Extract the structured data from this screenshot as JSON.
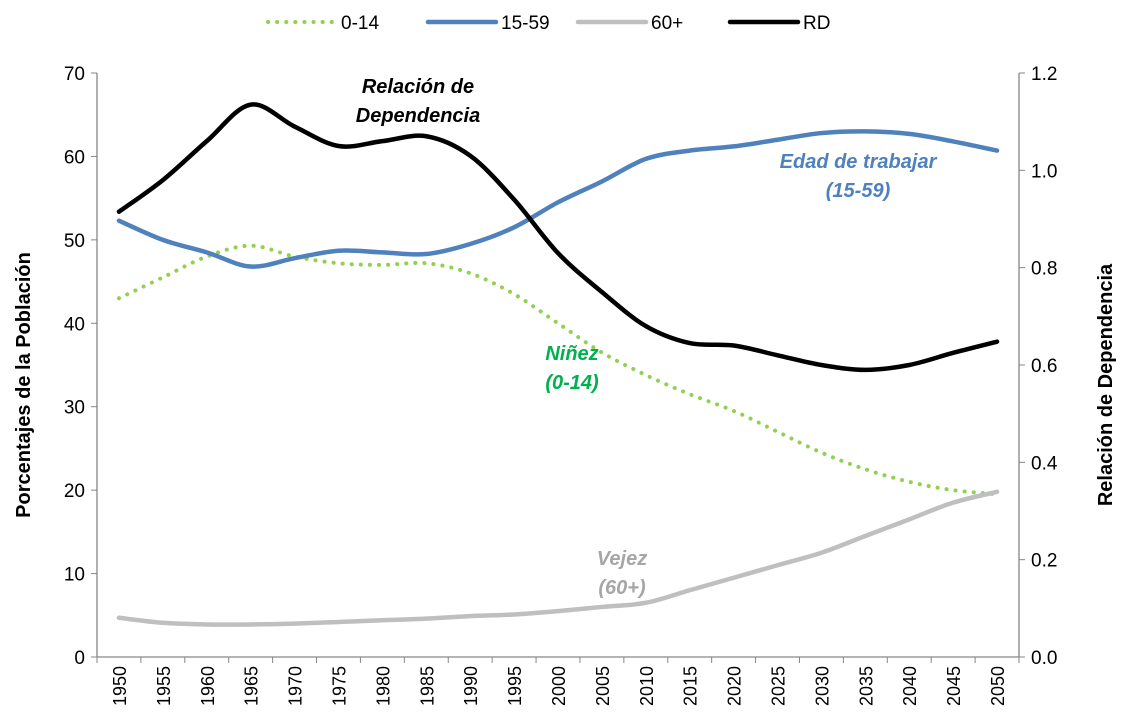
{
  "chart_data": {
    "type": "line",
    "categories": [
      "1950",
      "1955",
      "1960",
      "1965",
      "1970",
      "1975",
      "1980",
      "1985",
      "1990",
      "1995",
      "2000",
      "2005",
      "2010",
      "2015",
      "2020",
      "2025",
      "2030",
      "2035",
      "2040",
      "2045",
      "2050"
    ],
    "series": [
      {
        "name": "0-14",
        "color": "#92d050",
        "dash": "dotted",
        "values": [
          43,
          45.5,
          48,
          49.3,
          48,
          47.2,
          47,
          47.2,
          46,
          43.5,
          40,
          36.5,
          33.8,
          31.5,
          29.5,
          27,
          24.5,
          22.5,
          21,
          20,
          19.5
        ]
      },
      {
        "name": "15-59",
        "color": "#4f81bd",
        "values": [
          52.3,
          50,
          48.5,
          46.8,
          47.8,
          48.7,
          48.5,
          48.3,
          49.5,
          51.5,
          54.5,
          57,
          59.7,
          60.7,
          61.2,
          62,
          62.8,
          63,
          62.7,
          61.8,
          60.7
        ]
      },
      {
        "name": "60+",
        "color": "#bfbfbf",
        "values": [
          4.7,
          4.1,
          3.9,
          3.9,
          4.0,
          4.2,
          4.4,
          4.6,
          4.9,
          5.1,
          5.5,
          6.0,
          6.5,
          8.0,
          9.5,
          11,
          12.5,
          14.5,
          16.5,
          18.5,
          19.8
        ]
      },
      {
        "name": "RD",
        "color": "#000000",
        "axis": "y2",
        "values": [
          0.915,
          0.98,
          1.06,
          1.135,
          1.09,
          1.05,
          1.06,
          1.07,
          1.03,
          0.94,
          0.83,
          0.75,
          0.68,
          0.645,
          0.64,
          0.62,
          0.6,
          0.59,
          0.6,
          0.625,
          0.648
        ]
      }
    ],
    "ylabel": "Porcentajes de la Población",
    "y2label": "Relación de Dependencia",
    "ylim": [
      0,
      70
    ],
    "yticks": [
      0,
      10,
      20,
      30,
      40,
      50,
      60,
      70
    ],
    "y2lim": [
      0,
      1.2
    ],
    "y2ticks": [
      {
        "value": 0,
        "label": "0.0"
      },
      0.2,
      0.4,
      0.6,
      0.8,
      {
        "value": 1,
        "label": "1.0"
      },
      1.2
    ],
    "legend": "top",
    "annotations": [
      {
        "text": [
          "Relación de",
          "Dependencia"
        ],
        "color": "#000000"
      },
      {
        "text": [
          "Edad de trabajar",
          "(15-59)"
        ],
        "color": "#4f81bd"
      },
      {
        "text": [
          "Niñez",
          "(0-14)"
        ],
        "color": "#00b050"
      },
      {
        "text": [
          "Vejez",
          "(60+)"
        ],
        "color": "#a6a6a6"
      }
    ]
  }
}
